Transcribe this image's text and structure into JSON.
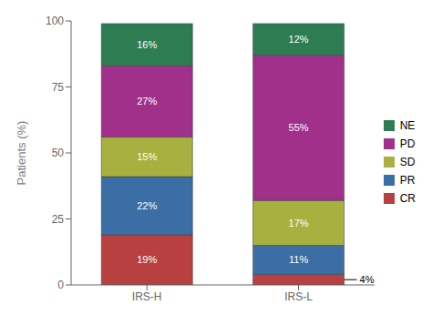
{
  "chart_data": {
    "type": "bar",
    "stacked": true,
    "categories": [
      "IRS-H",
      "IRS-L"
    ],
    "series": [
      {
        "name": "CR",
        "color": "#B84040",
        "values": [
          19,
          4
        ],
        "value_labels": [
          "19%",
          "4%"
        ]
      },
      {
        "name": "PR",
        "color": "#3A6EA5",
        "values": [
          22,
          11
        ],
        "value_labels": [
          "22%",
          "11%"
        ]
      },
      {
        "name": "SD",
        "color": "#A8B040",
        "values": [
          15,
          17
        ],
        "value_labels": [
          "15%",
          "17%"
        ]
      },
      {
        "name": "PD",
        "color": "#A0308A",
        "values": [
          27,
          55
        ],
        "value_labels": [
          "27%",
          "55%"
        ]
      },
      {
        "name": "NE",
        "color": "#2E7D52",
        "values": [
          16,
          12
        ],
        "value_labels": [
          "16%",
          "12%"
        ]
      }
    ],
    "ylabel": "Patients (%)",
    "ylim": [
      0,
      100
    ],
    "yticks": [
      0,
      25,
      50,
      75,
      100
    ],
    "grid": false,
    "legend": "right",
    "data_labels": true
  }
}
